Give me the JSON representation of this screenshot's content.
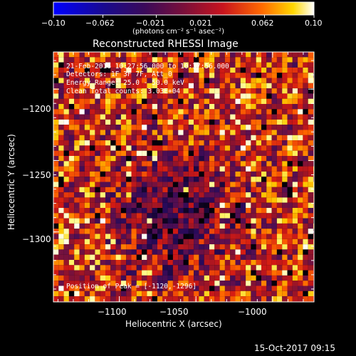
{
  "chart_data": {
    "type": "heatmap",
    "title": "Reconstructed RHESSI Image",
    "xlabel": "Heliocentric X (arcsec)",
    "ylabel": "Heliocentric Y (arcsec)",
    "xlim": [
      -1143,
      -973
    ],
    "ylim": [
      -1349,
      -1174
    ],
    "xticks": [
      -1100,
      -1050,
      -1000
    ],
    "xtick_labels": [
      "−1100",
      "−1050",
      "−1000"
    ],
    "yticks": [
      -1200,
      -1250,
      -1300
    ],
    "ytick_labels": [
      "−1200",
      "−1250",
      "−1300"
    ],
    "colorbar": {
      "range": [
        -0.1,
        0.1
      ],
      "tick_labels": [
        "−0.10",
        "−0.062",
        "−0.021",
        "0.021",
        "0.062",
        "0.10"
      ],
      "unit_label": "(photons cm⁻² s⁻¹ asec⁻²)"
    },
    "annotations": [
      "21-Feb-2016 10:27:56.000 to 10:37:56.000",
      "Detectors: 1F 3F 7F, Att_0",
      "Energy Range: 25.0 - 50.0 keV",
      "Clean    Total counts: 3.03E+04"
    ],
    "peak_label": "Position of Peak = [-1120,-1296]",
    "grid": false,
    "colormap": "blue-purple-red-orange-yellow-white"
  },
  "footer": {
    "timestamp": "15-Oct-2017 09:15"
  }
}
